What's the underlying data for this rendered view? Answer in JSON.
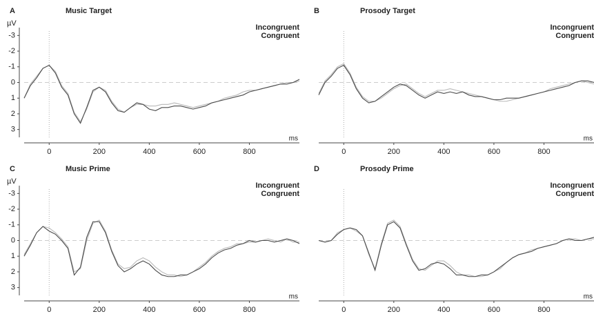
{
  "chart_data": [
    {
      "type": "line",
      "panel_label": "A",
      "title": "Music Target",
      "y_label": "µV",
      "x_label": "ms",
      "inverted_y": true,
      "xlim": [
        -100,
        1000
      ],
      "ylim": [
        -3.5,
        3.5
      ],
      "xticks": [
        0,
        200,
        400,
        600,
        800
      ],
      "yticks": [
        -3,
        -2,
        -1,
        0,
        1,
        2,
        3
      ],
      "x": [
        -100,
        -75,
        -50,
        -25,
        0,
        25,
        50,
        75,
        100,
        125,
        150,
        175,
        200,
        225,
        250,
        275,
        300,
        325,
        350,
        375,
        400,
        425,
        450,
        475,
        500,
        525,
        550,
        575,
        600,
        625,
        650,
        675,
        700,
        725,
        750,
        775,
        800,
        825,
        850,
        875,
        900,
        925,
        950,
        975,
        1000
      ],
      "series": [
        {
          "name": "Incongruent",
          "color": "#b8b8b8",
          "values": [
            1.0,
            0.1,
            -0.4,
            -0.9,
            -1.1,
            -0.7,
            0.2,
            0.7,
            1.9,
            2.5,
            1.7,
            0.6,
            0.3,
            0.5,
            1.2,
            1.7,
            1.9,
            1.6,
            1.4,
            1.4,
            1.5,
            1.5,
            1.4,
            1.4,
            1.3,
            1.4,
            1.5,
            1.6,
            1.5,
            1.4,
            1.3,
            1.2,
            1.0,
            0.9,
            0.8,
            0.6,
            0.5,
            0.5,
            0.4,
            0.3,
            0.2,
            0.1,
            0.0,
            0.0,
            -0.1
          ]
        },
        {
          "name": "Congruent",
          "color": "#4a4a4a",
          "values": [
            1.0,
            0.2,
            -0.3,
            -0.9,
            -1.1,
            -0.6,
            0.3,
            0.8,
            2.0,
            2.6,
            1.6,
            0.5,
            0.3,
            0.6,
            1.3,
            1.8,
            1.9,
            1.6,
            1.3,
            1.4,
            1.7,
            1.8,
            1.6,
            1.6,
            1.5,
            1.5,
            1.6,
            1.7,
            1.6,
            1.5,
            1.3,
            1.2,
            1.1,
            1.0,
            0.9,
            0.8,
            0.6,
            0.5,
            0.4,
            0.3,
            0.2,
            0.1,
            0.1,
            0.0,
            -0.2
          ]
        }
      ]
    },
    {
      "type": "line",
      "panel_label": "B",
      "title": "Prosody Target",
      "x_label": "ms",
      "inverted_y": true,
      "xlim": [
        -100,
        1000
      ],
      "ylim": [
        -3.5,
        3.5
      ],
      "xticks": [
        0,
        200,
        400,
        600,
        800
      ],
      "x": [
        -100,
        -75,
        -50,
        -25,
        0,
        25,
        50,
        75,
        100,
        125,
        150,
        175,
        200,
        225,
        250,
        275,
        300,
        325,
        350,
        375,
        400,
        425,
        450,
        475,
        500,
        525,
        550,
        575,
        600,
        625,
        650,
        675,
        700,
        725,
        750,
        775,
        800,
        825,
        850,
        875,
        900,
        925,
        950,
        975,
        1000
      ],
      "series": [
        {
          "name": "Incongruent",
          "color": "#b8b8b8",
          "values": [
            0.7,
            -0.1,
            -0.5,
            -1.0,
            -1.2,
            -0.6,
            0.3,
            0.9,
            1.2,
            1.2,
            1.0,
            0.7,
            0.4,
            0.2,
            0.1,
            0.4,
            0.7,
            0.9,
            0.7,
            0.5,
            0.5,
            0.4,
            0.5,
            0.6,
            0.7,
            0.8,
            0.9,
            1.0,
            1.1,
            1.2,
            1.2,
            1.1,
            1.0,
            0.9,
            0.8,
            0.7,
            0.6,
            0.4,
            0.3,
            0.2,
            0.1,
            0.0,
            -0.1,
            0.0,
            0.1
          ]
        },
        {
          "name": "Congruent",
          "color": "#4a4a4a",
          "values": [
            0.8,
            0.0,
            -0.4,
            -0.9,
            -1.1,
            -0.5,
            0.4,
            1.0,
            1.3,
            1.2,
            0.9,
            0.6,
            0.3,
            0.1,
            0.2,
            0.5,
            0.8,
            1.0,
            0.8,
            0.6,
            0.7,
            0.6,
            0.7,
            0.6,
            0.8,
            0.9,
            0.9,
            1.0,
            1.1,
            1.1,
            1.0,
            1.0,
            1.0,
            0.9,
            0.8,
            0.7,
            0.6,
            0.5,
            0.4,
            0.3,
            0.2,
            0.0,
            -0.1,
            -0.1,
            0.0
          ]
        }
      ]
    },
    {
      "type": "line",
      "panel_label": "C",
      "title": "Music Prime",
      "y_label": "µV",
      "x_label": "ms",
      "inverted_y": true,
      "xlim": [
        -100,
        1000
      ],
      "ylim": [
        -3.5,
        3.5
      ],
      "xticks": [
        0,
        200,
        400,
        600,
        800
      ],
      "yticks": [
        -3,
        -2,
        -1,
        0,
        1,
        2,
        3
      ],
      "x": [
        -100,
        -75,
        -50,
        -25,
        0,
        25,
        50,
        75,
        100,
        125,
        150,
        175,
        200,
        225,
        250,
        275,
        300,
        325,
        350,
        375,
        400,
        425,
        450,
        475,
        500,
        525,
        550,
        575,
        600,
        625,
        650,
        675,
        700,
        725,
        750,
        775,
        800,
        825,
        850,
        875,
        900,
        925,
        950,
        975,
        1000
      ],
      "series": [
        {
          "name": "Incongruent",
          "color": "#b8b8b8",
          "values": [
            0.9,
            0.2,
            -0.5,
            -0.9,
            -0.8,
            -0.5,
            -0.1,
            0.4,
            2.0,
            1.8,
            0.0,
            -1.1,
            -1.3,
            -0.6,
            0.6,
            1.5,
            1.8,
            1.7,
            1.3,
            1.1,
            1.3,
            1.7,
            2.0,
            2.2,
            2.2,
            2.3,
            2.2,
            2.0,
            1.7,
            1.4,
            1.0,
            0.7,
            0.5,
            0.4,
            0.2,
            0.2,
            0.1,
            0.1,
            0.0,
            -0.1,
            0.0,
            0.1,
            -0.1,
            0.1,
            0.1
          ]
        },
        {
          "name": "Congruent",
          "color": "#4a4a4a",
          "values": [
            1.0,
            0.3,
            -0.5,
            -0.9,
            -0.6,
            -0.4,
            0.0,
            0.5,
            2.2,
            1.7,
            -0.2,
            -1.2,
            -1.2,
            -0.5,
            0.7,
            1.6,
            2.0,
            1.8,
            1.5,
            1.3,
            1.5,
            1.9,
            2.2,
            2.3,
            2.3,
            2.2,
            2.2,
            2.0,
            1.8,
            1.5,
            1.1,
            0.8,
            0.6,
            0.5,
            0.3,
            0.2,
            0.0,
            0.1,
            0.0,
            0.0,
            0.1,
            0.0,
            -0.1,
            0.0,
            0.2
          ]
        }
      ]
    },
    {
      "type": "line",
      "panel_label": "D",
      "title": "Prosody Prime",
      "x_label": "ms",
      "inverted_y": true,
      "xlim": [
        -100,
        1000
      ],
      "ylim": [
        -3.5,
        3.5
      ],
      "xticks": [
        0,
        200,
        400,
        600,
        800
      ],
      "x": [
        -100,
        -75,
        -50,
        -25,
        0,
        25,
        50,
        75,
        100,
        125,
        150,
        175,
        200,
        225,
        250,
        275,
        300,
        325,
        350,
        375,
        400,
        425,
        450,
        475,
        500,
        525,
        550,
        575,
        600,
        625,
        650,
        675,
        700,
        725,
        750,
        775,
        800,
        825,
        850,
        875,
        900,
        925,
        950,
        975,
        1000
      ],
      "series": [
        {
          "name": "Incongruent",
          "color": "#b8b8b8",
          "values": [
            0.0,
            0.1,
            0.0,
            -0.5,
            -0.7,
            -0.8,
            -0.6,
            -0.3,
            0.9,
            1.8,
            0.2,
            -1.1,
            -1.3,
            -0.9,
            0.2,
            1.2,
            1.8,
            1.9,
            1.6,
            1.3,
            1.3,
            1.6,
            2.0,
            2.2,
            2.2,
            2.3,
            2.3,
            2.2,
            2.0,
            1.8,
            1.4,
            1.1,
            0.9,
            0.8,
            0.6,
            0.5,
            0.4,
            0.3,
            0.2,
            0.0,
            -0.1,
            -0.1,
            0.0,
            -0.1,
            -0.1
          ]
        },
        {
          "name": "Congruent",
          "color": "#4a4a4a",
          "values": [
            0.0,
            0.1,
            0.0,
            -0.4,
            -0.7,
            -0.8,
            -0.7,
            -0.3,
            0.8,
            1.9,
            0.3,
            -1.0,
            -1.2,
            -0.8,
            0.3,
            1.3,
            1.9,
            1.8,
            1.5,
            1.4,
            1.5,
            1.8,
            2.2,
            2.2,
            2.3,
            2.3,
            2.2,
            2.2,
            2.0,
            1.7,
            1.4,
            1.1,
            0.9,
            0.8,
            0.7,
            0.5,
            0.4,
            0.3,
            0.2,
            0.0,
            -0.1,
            0.0,
            0.0,
            -0.1,
            -0.2
          ]
        }
      ]
    }
  ]
}
